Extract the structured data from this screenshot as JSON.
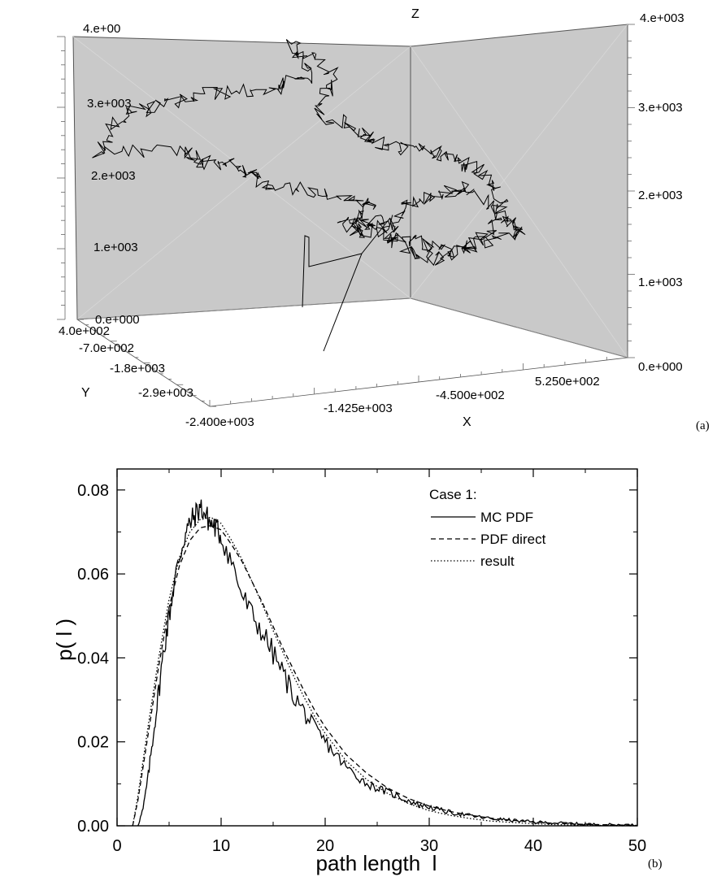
{
  "chart_data": [
    {
      "type": "scatter",
      "panel_label": "(a)",
      "axis_names": {
        "x": "X",
        "y": "Y",
        "z": "Z"
      },
      "x_ticks": [
        "-2.400e+003",
        "-1.425e+003",
        "-4.500e+002",
        "5.250e+002"
      ],
      "y_ticks": [
        "4.0e+002",
        "-7.0e+002",
        "-1.8e+003",
        "-2.9e+003"
      ],
      "z_ticks_left": [
        "0.e+000",
        "1.e+003",
        "2.e+003",
        "3.e+003",
        "4.e+00"
      ],
      "z_ticks_right": [
        "0.e+000",
        "1.e+003",
        "2.e+003",
        "3.e+003",
        "4.e+003"
      ],
      "xlim": [
        -2400,
        1500
      ],
      "ylim": [
        -4000,
        400
      ],
      "zlim": [
        0,
        4000
      ],
      "trajectory_description_free": true
    },
    {
      "type": "line",
      "panel_label": "(b)",
      "xlabel": "path length  l",
      "ylabel": "p( l )",
      "xlim": [
        0,
        50
      ],
      "ylim": [
        0,
        0.085
      ],
      "x_ticks": [
        "0",
        "10",
        "20",
        "30",
        "40",
        "50"
      ],
      "y_ticks": [
        "0.00",
        "0.02",
        "0.04",
        "0.06",
        "0.08"
      ],
      "legend": {
        "title": "Case 1:",
        "position": "top-right",
        "entries": [
          "MC PDF",
          "PDF direct",
          "result"
        ]
      },
      "series": [
        {
          "name": "MC PDF",
          "style": "solid",
          "x": [
            2,
            2.5,
            3,
            3.5,
            4,
            4.5,
            5,
            5.5,
            6,
            6.5,
            7,
            7.5,
            8,
            8.5,
            9,
            9.5,
            10,
            11,
            12,
            13,
            14,
            15,
            16,
            17,
            18,
            19,
            20,
            21,
            22,
            23,
            24,
            25,
            26,
            27,
            28,
            29,
            30,
            31,
            32,
            33,
            34,
            35,
            36,
            37,
            38,
            39,
            40,
            41,
            42,
            43,
            44,
            45,
            46,
            47,
            48,
            49,
            50
          ],
          "values": [
            0.0,
            0.004,
            0.012,
            0.022,
            0.032,
            0.042,
            0.05,
            0.058,
            0.064,
            0.069,
            0.072,
            0.074,
            0.076,
            0.074,
            0.072,
            0.071,
            0.069,
            0.063,
            0.055,
            0.05,
            0.046,
            0.041,
            0.036,
            0.031,
            0.027,
            0.023,
            0.02,
            0.017,
            0.014,
            0.012,
            0.01,
            0.009,
            0.008,
            0.007,
            0.006,
            0.005,
            0.0045,
            0.0038,
            0.0032,
            0.0028,
            0.0024,
            0.002,
            0.0017,
            0.0015,
            0.0013,
            0.0011,
            0.0009,
            0.0008,
            0.0007,
            0.0006,
            0.0005,
            0.0004,
            0.0003,
            0.0003,
            0.0002,
            0.0002,
            0.0001
          ]
        },
        {
          "name": "PDF direct",
          "style": "dashed",
          "x": [
            1.5,
            2,
            3,
            4,
            5,
            6,
            7,
            8,
            9,
            10,
            11,
            12,
            13,
            14,
            15,
            16,
            17,
            18,
            19,
            20,
            22,
            24,
            26,
            28,
            30,
            32,
            34,
            36,
            38,
            40,
            42,
            44,
            46,
            48,
            50
          ],
          "values": [
            0.0,
            0.006,
            0.022,
            0.038,
            0.052,
            0.062,
            0.068,
            0.071,
            0.0715,
            0.0705,
            0.067,
            0.063,
            0.058,
            0.053,
            0.0475,
            0.042,
            0.037,
            0.032,
            0.0275,
            0.0235,
            0.017,
            0.0125,
            0.009,
            0.0065,
            0.0047,
            0.0034,
            0.0025,
            0.0018,
            0.0013,
            0.0009,
            0.0006,
            0.0004,
            0.0003,
            0.0002,
            0.0001
          ]
        },
        {
          "name": "result",
          "style": "dotted",
          "x": [
            1.5,
            2,
            3,
            4,
            5,
            6,
            7,
            8,
            9,
            10,
            11,
            12,
            13,
            14,
            15,
            16,
            17,
            18,
            19,
            20,
            22,
            24,
            26,
            28,
            30,
            32,
            34,
            36,
            38,
            40,
            42,
            44,
            46,
            48,
            50
          ],
          "values": [
            0.0,
            0.007,
            0.024,
            0.04,
            0.054,
            0.064,
            0.07,
            0.073,
            0.0735,
            0.072,
            0.068,
            0.0635,
            0.058,
            0.0525,
            0.0465,
            0.041,
            0.0355,
            0.0305,
            0.026,
            0.022,
            0.0155,
            0.011,
            0.0077,
            0.0053,
            0.0036,
            0.0025,
            0.0017,
            0.0011,
            0.0008,
            0.0005,
            0.0003,
            0.0002,
            0.0001,
            0.0001,
            0.0
          ]
        }
      ]
    }
  ]
}
